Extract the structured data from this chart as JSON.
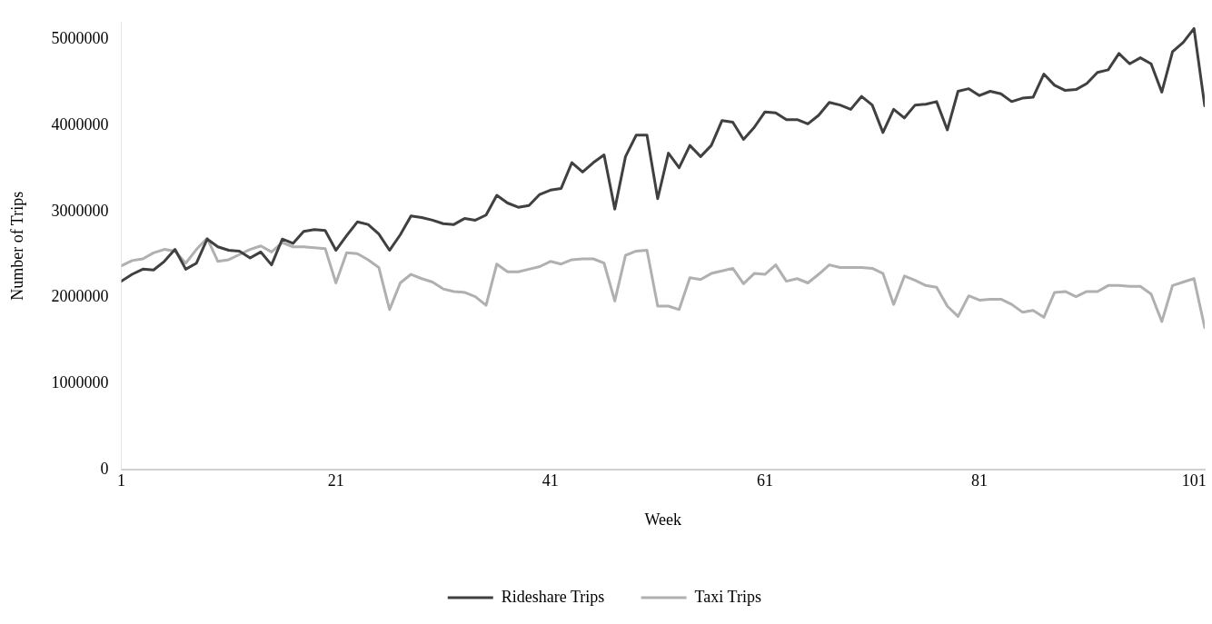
{
  "chart_data": {
    "type": "line",
    "xlabel": "Week",
    "ylabel": "Number of Trips",
    "x": [
      1,
      2,
      3,
      4,
      5,
      6,
      7,
      8,
      9,
      10,
      11,
      12,
      13,
      14,
      15,
      16,
      17,
      18,
      19,
      20,
      21,
      22,
      23,
      24,
      25,
      26,
      27,
      28,
      29,
      30,
      31,
      32,
      33,
      34,
      35,
      36,
      37,
      38,
      39,
      40,
      41,
      42,
      43,
      44,
      45,
      46,
      47,
      48,
      49,
      50,
      51,
      52,
      53,
      54,
      55,
      56,
      57,
      58,
      59,
      60,
      61,
      62,
      63,
      64,
      65,
      66,
      67,
      68,
      69,
      70,
      71,
      72,
      73,
      74,
      75,
      76,
      77,
      78,
      79,
      80,
      81,
      82,
      83,
      84,
      85,
      86,
      87,
      88,
      89,
      90,
      91,
      92,
      93,
      94,
      95,
      96,
      97,
      98,
      99,
      100,
      101,
      102
    ],
    "xlim": [
      1,
      102
    ],
    "xticks": [
      1,
      21,
      41,
      61,
      81,
      101
    ],
    "ylim": [
      0,
      5200000
    ],
    "yticks": [
      0,
      1000000,
      2000000,
      3000000,
      4000000,
      5000000
    ],
    "grid": false,
    "legend": "bottom",
    "marker": "none",
    "line_style": "solid",
    "series": [
      {
        "name": "Rideshare Trips",
        "color": "#404040",
        "values": [
          2190000,
          2270000,
          2330000,
          2320000,
          2420000,
          2560000,
          2330000,
          2400000,
          2680000,
          2590000,
          2550000,
          2540000,
          2460000,
          2530000,
          2380000,
          2680000,
          2630000,
          2770000,
          2790000,
          2780000,
          2550000,
          2720000,
          2880000,
          2850000,
          2740000,
          2550000,
          2730000,
          2950000,
          2930000,
          2900000,
          2860000,
          2850000,
          2920000,
          2900000,
          2960000,
          3190000,
          3100000,
          3050000,
          3070000,
          3200000,
          3250000,
          3270000,
          3570000,
          3460000,
          3570000,
          3660000,
          3030000,
          3640000,
          3890000,
          3890000,
          3150000,
          3680000,
          3510000,
          3770000,
          3640000,
          3770000,
          4060000,
          4040000,
          3840000,
          3980000,
          4160000,
          4150000,
          4070000,
          4070000,
          4020000,
          4120000,
          4270000,
          4240000,
          4190000,
          4340000,
          4240000,
          3920000,
          4190000,
          4090000,
          4240000,
          4250000,
          4280000,
          3950000,
          4400000,
          4430000,
          4350000,
          4400000,
          4370000,
          4280000,
          4320000,
          4330000,
          4600000,
          4470000,
          4410000,
          4420000,
          4490000,
          4620000,
          4650000,
          4840000,
          4720000,
          4790000,
          4720000,
          4390000,
          4860000,
          4970000,
          5130000,
          4230000
        ]
      },
      {
        "name": "Taxi Trips",
        "color": "#b0b0b0",
        "values": [
          2370000,
          2430000,
          2450000,
          2520000,
          2560000,
          2540000,
          2400000,
          2560000,
          2690000,
          2420000,
          2440000,
          2500000,
          2560000,
          2600000,
          2530000,
          2640000,
          2590000,
          2590000,
          2580000,
          2570000,
          2170000,
          2520000,
          2510000,
          2440000,
          2350000,
          1860000,
          2170000,
          2270000,
          2220000,
          2180000,
          2100000,
          2070000,
          2060000,
          2010000,
          1910000,
          2390000,
          2300000,
          2300000,
          2330000,
          2360000,
          2420000,
          2390000,
          2440000,
          2450000,
          2450000,
          2400000,
          1960000,
          2490000,
          2540000,
          2550000,
          1900000,
          1900000,
          1860000,
          2230000,
          2210000,
          2280000,
          2310000,
          2340000,
          2160000,
          2280000,
          2270000,
          2380000,
          2190000,
          2220000,
          2170000,
          2270000,
          2380000,
          2350000,
          2350000,
          2350000,
          2340000,
          2280000,
          1920000,
          2250000,
          2200000,
          2140000,
          2120000,
          1900000,
          1780000,
          2020000,
          1970000,
          1980000,
          1980000,
          1920000,
          1830000,
          1850000,
          1770000,
          2060000,
          2070000,
          2010000,
          2070000,
          2070000,
          2140000,
          2140000,
          2130000,
          2130000,
          2040000,
          1720000,
          2140000,
          2180000,
          2220000,
          1650000
        ]
      }
    ]
  }
}
